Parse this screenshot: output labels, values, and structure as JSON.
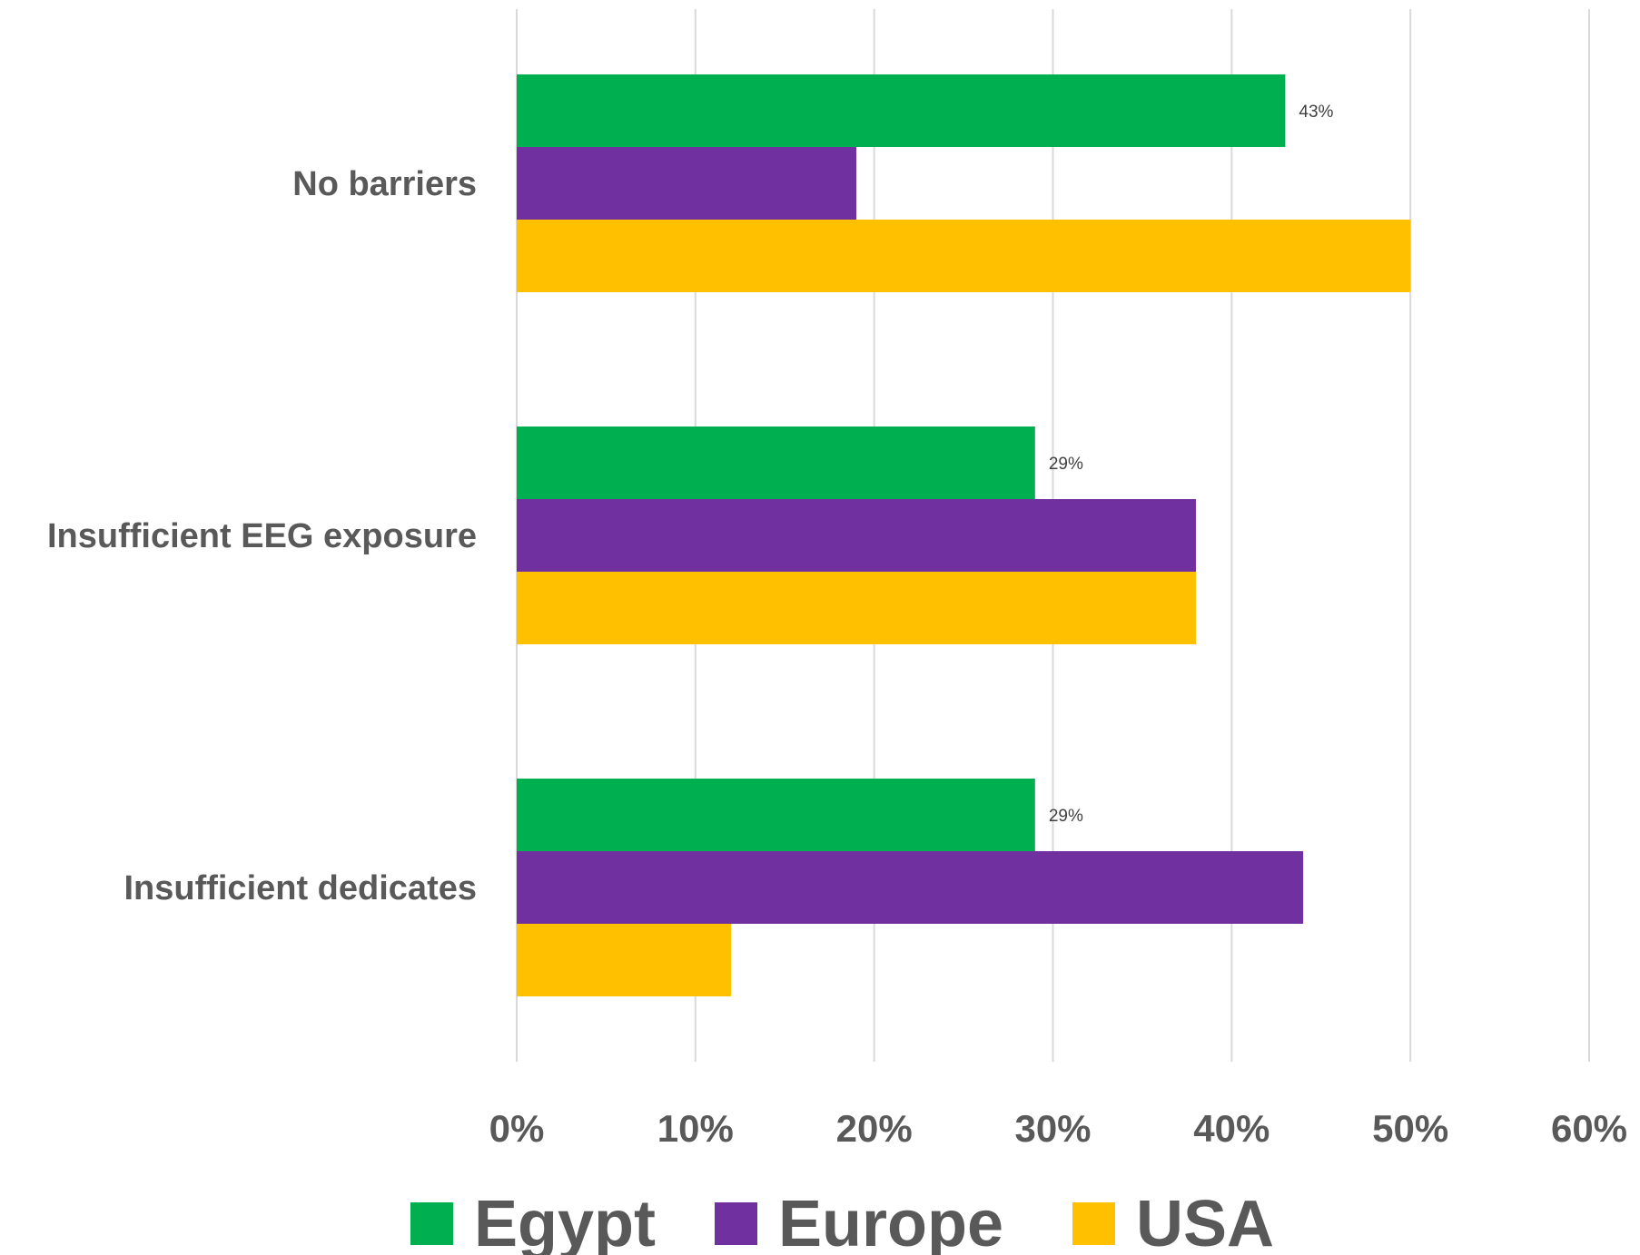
{
  "chart_data": {
    "type": "bar",
    "orientation": "horizontal",
    "categories": [
      "No barriers",
      "Insufficient EEG exposure",
      "Insufficient dedicates"
    ],
    "series": [
      {
        "name": "Egypt",
        "color": "#00B050",
        "values": [
          43,
          29,
          29
        ]
      },
      {
        "name": "Europe",
        "color": "#7030A0",
        "values": [
          19,
          38,
          44
        ]
      },
      {
        "name": "USA",
        "color": "#FFC000",
        "values": [
          50,
          38,
          12
        ]
      }
    ],
    "data_labels": [
      {
        "series": "Egypt",
        "category": "No barriers",
        "text": "43%"
      },
      {
        "series": "Egypt",
        "category": "Insufficient EEG exposure",
        "text": "29%"
      },
      {
        "series": "Egypt",
        "category": "Insufficient dedicates",
        "text": "29%"
      }
    ],
    "x_ticks": [
      "0%",
      "10%",
      "20%",
      "30%",
      "40%",
      "50%",
      "60%"
    ],
    "xlim": [
      0,
      60
    ],
    "grid": true,
    "legend_position": "bottom",
    "title": "",
    "xlabel": "",
    "ylabel": ""
  }
}
